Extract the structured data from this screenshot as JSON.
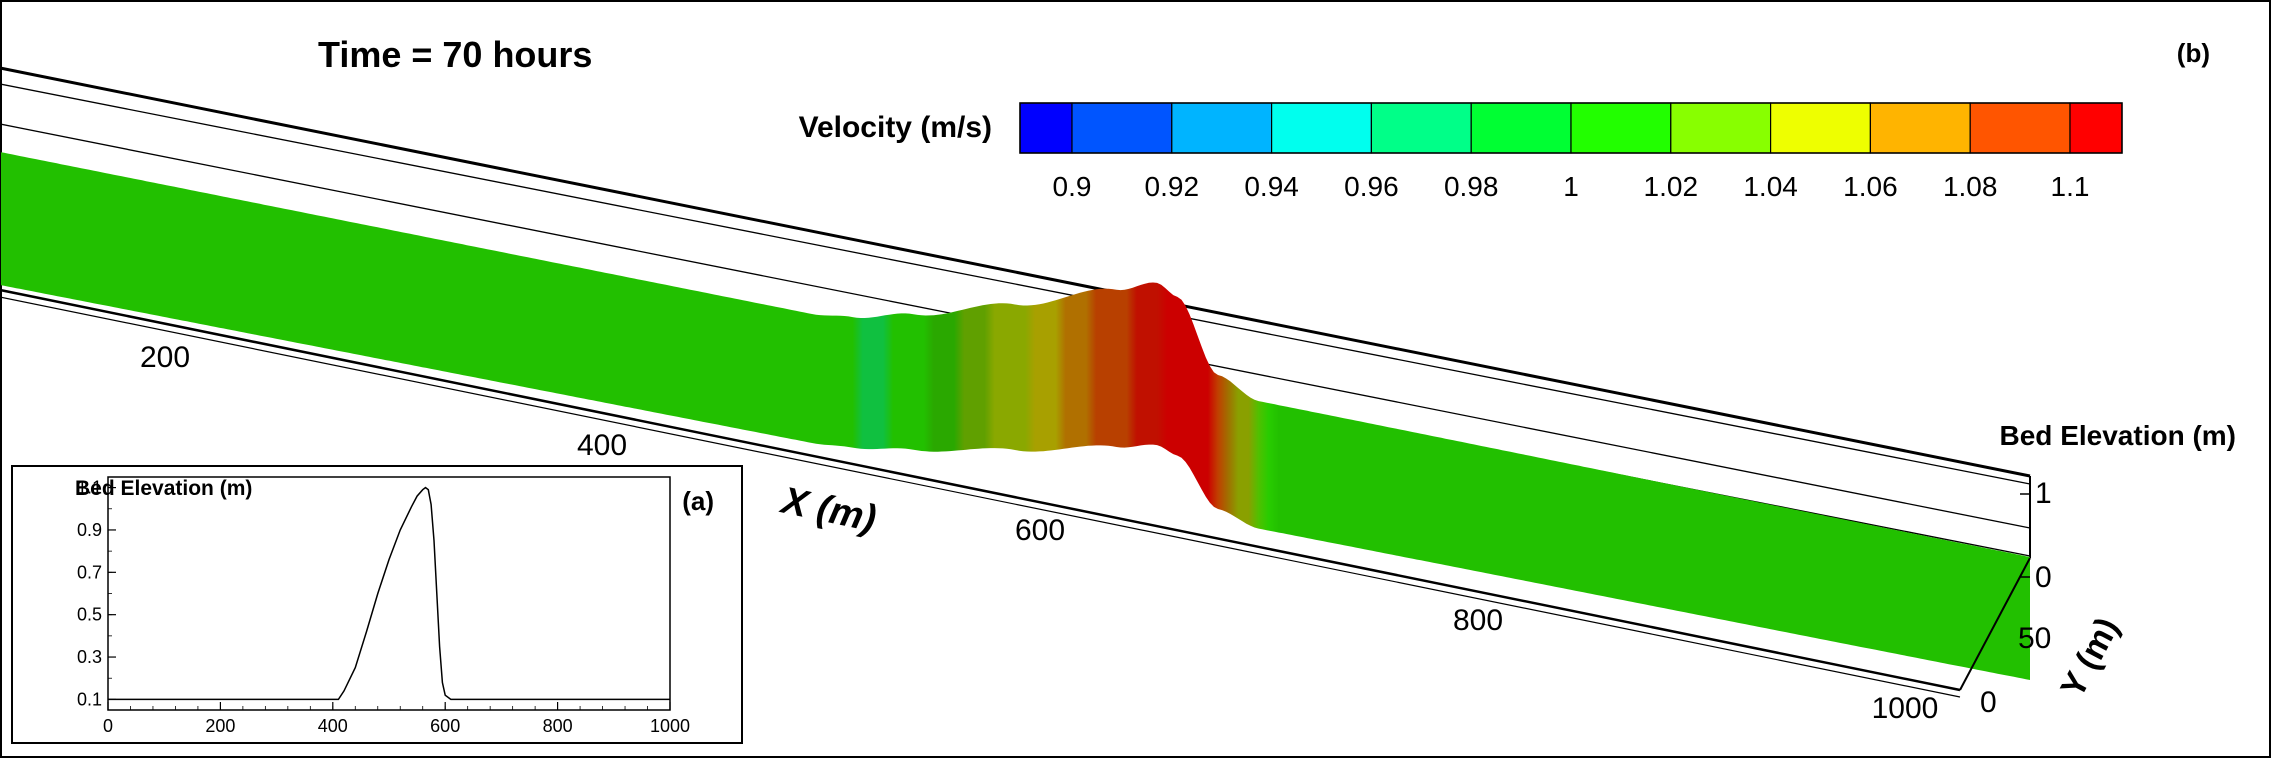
{
  "figure": {
    "title": "Time = 70 hours",
    "panel_b_label": "(b)",
    "panel_a_label": "(a)"
  },
  "colorbar": {
    "title": "Velocity (m/s)",
    "colors": [
      "#0000ff",
      "#0055ff",
      "#00b4ff",
      "#00ffee",
      "#00ff88",
      "#00ff33",
      "#22ff00",
      "#88ff00",
      "#eeff00",
      "#ffb400",
      "#ff5500",
      "#ff0000"
    ],
    "tick_labels": [
      "0.9",
      "0.92",
      "0.94",
      "0.96",
      "0.98",
      "1",
      "1.02",
      "1.04",
      "1.06",
      "1.08",
      "1.1"
    ],
    "tick_values": [
      0.9,
      0.92,
      0.94,
      0.96,
      0.98,
      1.0,
      1.02,
      1.04,
      1.06,
      1.08,
      1.1
    ],
    "range": [
      0.89,
      1.11
    ]
  },
  "chart_data": [
    {
      "type": "surface",
      "panel": "(b)",
      "title": "Time = 70 hours",
      "xlabel": "X (m)",
      "ylabel": "Y (m)",
      "zlabel": "Bed Elevation (m)",
      "x_ticks": [
        "200",
        "400",
        "600",
        "800",
        "1000"
      ],
      "y_ticks": [
        "0",
        "50"
      ],
      "z_ticks": [
        "0",
        "1"
      ],
      "xlim": [
        0,
        1000
      ],
      "ylim": [
        0,
        60
      ],
      "zlim": [
        0,
        1.1
      ],
      "colorbar_label": "Velocity (m/s)",
      "bed_profile_x": [
        0,
        400,
        420,
        450,
        500,
        550,
        570,
        580,
        600,
        620,
        1000
      ],
      "bed_profile_z": [
        0,
        0,
        0.05,
        0.2,
        0.5,
        0.85,
        1.0,
        0.9,
        0.2,
        0.02,
        0
      ],
      "velocity_by_x": [
        {
          "x": 0,
          "v": 1.01
        },
        {
          "x": 420,
          "v": 0.99
        },
        {
          "x": 460,
          "v": 1.0
        },
        {
          "x": 500,
          "v": 1.03
        },
        {
          "x": 530,
          "v": 1.05
        },
        {
          "x": 560,
          "v": 1.08
        },
        {
          "x": 585,
          "v": 1.1
        },
        {
          "x": 600,
          "v": 1.06
        },
        {
          "x": 620,
          "v": 1.01
        },
        {
          "x": 1000,
          "v": 1.01
        }
      ]
    },
    {
      "type": "line",
      "panel": "(a)",
      "title": "Bed Elevation (m)",
      "x_ticks": [
        "0",
        "200",
        "400",
        "600",
        "800",
        "1000"
      ],
      "y_ticks": [
        "0.1",
        "0.3",
        "0.5",
        "0.7",
        "0.9",
        "1.1"
      ],
      "xlim": [
        0,
        1000
      ],
      "ylim": [
        0.05,
        1.15
      ],
      "series": [
        {
          "x": [
            0,
            410,
            420,
            440,
            460,
            480,
            500,
            520,
            540,
            550,
            560,
            565,
            570,
            575,
            580,
            585,
            590,
            595,
            600,
            610,
            1000
          ],
          "y": [
            0.1,
            0.1,
            0.14,
            0.25,
            0.42,
            0.6,
            0.76,
            0.9,
            1.01,
            1.06,
            1.09,
            1.1,
            1.09,
            1.02,
            0.85,
            0.6,
            0.35,
            0.18,
            0.12,
            0.1,
            0.1
          ]
        }
      ]
    }
  ]
}
